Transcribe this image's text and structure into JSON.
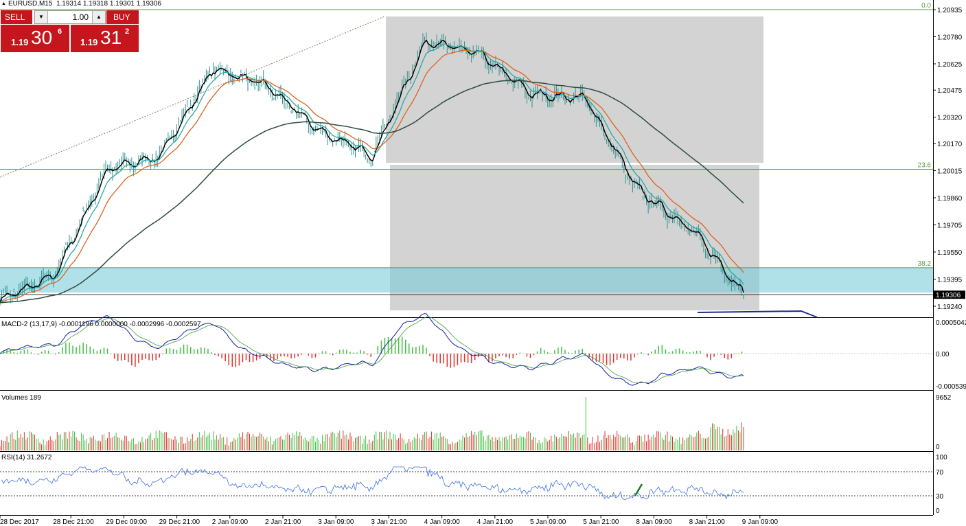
{
  "header": {
    "symbol": "EURUSD,M15",
    "ohlc": "1.19314 1.19318 1.19301 1.19306"
  },
  "trade_panel": {
    "sell_label": "SELL",
    "buy_label": "BUY",
    "lot": "1.00",
    "sell_small": "1.19",
    "sell_big": "30",
    "sell_sup": "6",
    "buy_small": "1.19",
    "buy_big": "31",
    "buy_sup": "2"
  },
  "price_axis": {
    "labels": [
      "1.20935",
      "1.20780",
      "1.20625",
      "1.20475",
      "1.20320",
      "1.20170",
      "1.20015",
      "1.19860",
      "1.19705",
      "1.19550",
      "1.19395",
      "1.19240"
    ],
    "current_price": "1.19306"
  },
  "fibonacci": {
    "levels": [
      {
        "label": "0.0",
        "price": 1.20935
      },
      {
        "label": "23.6",
        "price": 1.20023
      },
      {
        "label": "38.2",
        "price": 1.1946
      }
    ]
  },
  "macd": {
    "label": "MACD-2 (13,17,9) -0.0001196 0.0000000 -0.0002996 -0.0002597",
    "axis": [
      "0.0005042",
      "0.00",
      "-0.000539"
    ]
  },
  "volumes": {
    "label": "Volumes 189",
    "axis": [
      "9652",
      "0"
    ]
  },
  "rsi": {
    "label": "RSI(14) 31.2672",
    "axis": [
      "100",
      "70",
      "30",
      "0"
    ]
  },
  "time_axis": {
    "labels": [
      "28 Dec 2017",
      "28 Dec 21:00",
      "29 Dec 09:00",
      "29 Dec 21:00",
      "2 Jan 09:00",
      "2 Jan 21:00",
      "3 Jan 09:00",
      "3 Jan 21:00",
      "4 Jan 09:00",
      "4 Jan 21:00",
      "5 Jan 09:00",
      "5 Jan 21:00",
      "8 Jan 09:00",
      "8 Jan 21:00",
      "9 Jan 09:00"
    ]
  },
  "colors": {
    "grey_box": "#d3d3d3",
    "zone": "#7ccbd8",
    "ema_fast": "#2aa7a0",
    "ema_mid": "#d8651e",
    "ema_slow": "#2e4a40",
    "fib": "#5a9a3a",
    "macd_up": "#3fbf3f",
    "macd_down": "#e0302a",
    "rsi_line": "#3b6fe0",
    "sell_buy": "#c4161c"
  },
  "chart_data": {
    "type": "line",
    "title": "EURUSD,M15",
    "x": [
      "28 Dec 2017",
      "28 Dec 21:00",
      "29 Dec 09:00",
      "29 Dec 21:00",
      "2 Jan 09:00",
      "2 Jan 21:00",
      "3 Jan 09:00",
      "3 Jan 21:00",
      "4 Jan 09:00",
      "4 Jan 21:00",
      "5 Jan 09:00",
      "5 Jan 21:00",
      "8 Jan 09:00",
      "8 Jan 21:00",
      "9 Jan 09:00"
    ],
    "series": [
      {
        "name": "",
        "values": [
          1.1928,
          1.1941,
          1.2002,
          1.201,
          1.206,
          1.205,
          1.2024,
          1.201,
          1.2076,
          1.2068,
          1.2045,
          1.2043,
          1.199,
          1.1968,
          1.1931
        ]
      }
    ],
    "ylim": [
      1.192,
      1.2096
    ]
  }
}
